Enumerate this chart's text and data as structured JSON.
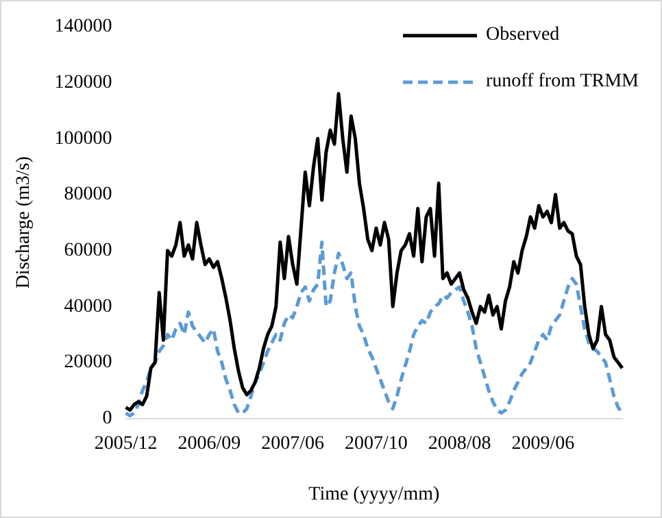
{
  "chart_data": {
    "type": "line",
    "xlabel": "Time (yyyy/mm)",
    "ylabel": "Discharge (m3/s)",
    "categories": [
      "2005/12",
      null,
      null,
      null,
      null,
      null,
      null,
      null,
      null,
      null,
      null,
      null,
      null,
      null,
      null,
      null,
      null,
      null,
      null,
      null,
      "2006/09",
      null,
      null,
      null,
      null,
      null,
      null,
      null,
      null,
      null,
      null,
      null,
      null,
      null,
      null,
      null,
      null,
      null,
      null,
      null,
      "2007/06",
      null,
      null,
      null,
      null,
      null,
      null,
      null,
      null,
      null,
      null,
      null,
      null,
      null,
      null,
      null,
      null,
      null,
      null,
      null,
      "2007/10",
      null,
      null,
      null,
      null,
      null,
      null,
      null,
      null,
      null,
      null,
      null,
      null,
      null,
      null,
      null,
      null,
      null,
      null,
      null,
      "2008/08",
      null,
      null,
      null,
      null,
      null,
      null,
      null,
      null,
      null,
      null,
      null,
      null,
      null,
      null,
      null,
      null,
      null,
      null,
      null,
      "2009/06",
      null,
      null,
      null,
      null,
      null,
      null,
      null,
      null,
      null,
      null,
      null,
      null,
      null,
      null,
      null,
      null,
      null,
      null,
      null
    ],
    "series": [
      {
        "name": "Observed",
        "color": "#000000",
        "line_style": "solid",
        "values": [
          4000,
          3000,
          5000,
          6000,
          5000,
          8000,
          18000,
          20000,
          45000,
          28000,
          60000,
          58000,
          62000,
          70000,
          58000,
          62000,
          57000,
          70000,
          62000,
          55000,
          57000,
          54000,
          56000,
          50000,
          43000,
          35000,
          25000,
          17000,
          11000,
          8500,
          10000,
          13000,
          18000,
          25000,
          30000,
          33000,
          40000,
          63000,
          50000,
          65000,
          55000,
          48000,
          68000,
          88000,
          76000,
          90000,
          100000,
          78000,
          95000,
          103000,
          98000,
          116000,
          100000,
          88000,
          108000,
          100000,
          84000,
          75000,
          64000,
          60000,
          68000,
          62000,
          70000,
          64000,
          40000,
          52000,
          60000,
          62000,
          66000,
          58000,
          75000,
          56000,
          72000,
          75000,
          58000,
          84000,
          50000,
          52000,
          48000,
          50000,
          52000,
          46000,
          43000,
          38000,
          34000,
          40000,
          38000,
          44000,
          37000,
          40000,
          32000,
          42000,
          47000,
          56000,
          52000,
          60000,
          65000,
          72000,
          68000,
          76000,
          72000,
          74000,
          70000,
          80000,
          68000,
          70000,
          67000,
          66000,
          58000,
          55000,
          40000,
          30000,
          25000,
          28000,
          40000,
          30000,
          28000,
          22000,
          20000,
          18000
        ]
      },
      {
        "name": "runoff from TRMM",
        "color": "#5b9bd5",
        "line_style": "dashed",
        "values": [
          2000,
          1000,
          2000,
          5000,
          10000,
          13000,
          18000,
          20000,
          24000,
          26000,
          30000,
          28000,
          32000,
          34000,
          30000,
          38000,
          33000,
          31000,
          29000,
          27000,
          30000,
          32000,
          24000,
          20000,
          14000,
          10000,
          5000,
          2000,
          2000,
          3500,
          8000,
          13000,
          16000,
          20000,
          24000,
          27000,
          30000,
          28000,
          34000,
          37000,
          36000,
          40000,
          45000,
          47000,
          42000,
          46000,
          48000,
          63000,
          40000,
          42000,
          52000,
          59000,
          55000,
          50000,
          52000,
          40000,
          33000,
          30000,
          25000,
          22000,
          18000,
          14000,
          10000,
          6000,
          3500,
          8000,
          14000,
          19000,
          24000,
          30000,
          33000,
          35000,
          34000,
          38000,
          40000,
          41000,
          44000,
          43000,
          45000,
          46000,
          47000,
          42000,
          38000,
          33000,
          25000,
          20000,
          15000,
          10000,
          6000,
          3000,
          2000,
          3000,
          6000,
          10000,
          13000,
          16000,
          18000,
          20000,
          24000,
          28000,
          30000,
          28000,
          33000,
          35000,
          37000,
          42000,
          47000,
          50000,
          48000,
          40000,
          32000,
          27000,
          25000,
          24000,
          22000,
          20000,
          14000,
          8000,
          4000,
          2000
        ]
      }
    ],
    "ylim": [
      0,
      140000
    ],
    "yticks": [
      0,
      20000,
      40000,
      60000,
      80000,
      100000,
      120000,
      140000
    ],
    "grid": false,
    "legend": "top right",
    "marker": "none"
  }
}
